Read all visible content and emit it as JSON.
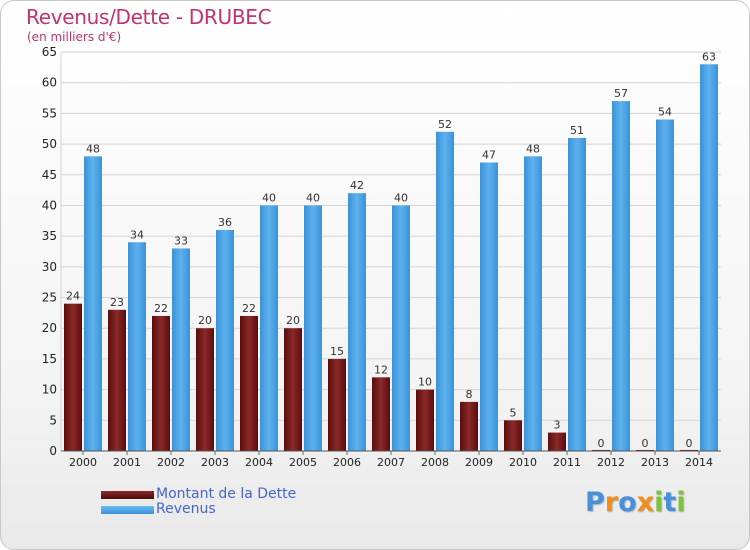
{
  "title": "Revenus/Dette - DRUBEC",
  "subtitle": "(en milliers d'€)",
  "colors": {
    "dette": "#7a1f1f",
    "revenus": "#4aa3e6",
    "title": "#c2336b",
    "legend_text": "#4466cc"
  },
  "legend": [
    {
      "label": "Montant de la Dette",
      "color": "#6b1414"
    },
    {
      "label": "Revenus",
      "color": "#4aa3e6"
    }
  ],
  "logo": {
    "text": "Proxiti",
    "letters": [
      {
        "ch": "P",
        "color": "#4a90d9"
      },
      {
        "ch": "r",
        "color": "#f28c1e"
      },
      {
        "ch": "o",
        "color": "#4a90d9"
      },
      {
        "ch": "x",
        "color": "#f28c1e"
      },
      {
        "ch": "i",
        "color": "#7cc242"
      },
      {
        "ch": "t",
        "color": "#4a90d9"
      },
      {
        "ch": "i",
        "color": "#7cc242"
      }
    ]
  },
  "chart_data": {
    "type": "bar",
    "title": "Revenus/Dette - DRUBEC",
    "subtitle": "(en milliers d'€)",
    "categories": [
      "2000",
      "2001",
      "2002",
      "2003",
      "2004",
      "2005",
      "2006",
      "2007",
      "2008",
      "2009",
      "2010",
      "2011",
      "2012",
      "2013",
      "2014"
    ],
    "series": [
      {
        "name": "Montant de la Dette",
        "values": [
          24,
          23,
          22,
          20,
          22,
          20,
          15,
          12,
          10,
          8,
          5,
          3,
          0,
          0,
          0
        ]
      },
      {
        "name": "Revenus",
        "values": [
          48,
          34,
          33,
          36,
          40,
          40,
          42,
          40,
          52,
          47,
          48,
          51,
          57,
          54,
          63
        ]
      }
    ],
    "ylim": [
      0,
      65
    ],
    "yticks": [
      0,
      5,
      10,
      15,
      20,
      25,
      30,
      35,
      40,
      45,
      50,
      55,
      60,
      65
    ],
    "grid": true,
    "legend_position": "bottom-left"
  }
}
